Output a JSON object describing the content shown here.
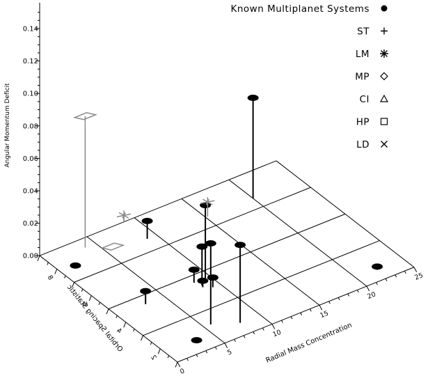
{
  "chart_data": {
    "type": "scatter",
    "subtype": "3d-stem",
    "xlabel": "Radial Mass Concentration",
    "ylabel": "Orbital Spacing Statistic",
    "zlabel": "Angular Momentum Deficit",
    "xlim": [
      0,
      25
    ],
    "ylim": [
      1,
      9
    ],
    "zlim": [
      0,
      0.15
    ],
    "x_ticks": [
      "0",
      "5",
      "10",
      "15",
      "20",
      "25"
    ],
    "y_ticks": [
      "2",
      "4",
      "6",
      "8"
    ],
    "z_ticks": [
      "0.00",
      "0.02",
      "0.04",
      "0.06",
      "0.08",
      "0.10",
      "0.12",
      "0.14"
    ],
    "legend_position": "top-right",
    "legend": [
      {
        "label": "Known Multiplanet Systems",
        "symbol": "filled-ellipse"
      },
      {
        "label": "ST",
        "symbol": "plus"
      },
      {
        "label": "LM",
        "symbol": "asterisk"
      },
      {
        "label": "MP",
        "symbol": "diamond"
      },
      {
        "label": "CI",
        "symbol": "triangle"
      },
      {
        "label": "HP",
        "symbol": "square"
      },
      {
        "label": "LD",
        "symbol": "x"
      }
    ],
    "series": [
      {
        "name": "Known Multiplanet Systems",
        "color": "#000000",
        "points": [
          {
            "x": 3.3,
            "y": 1.7,
            "z": 0.0
          },
          {
            "x": 1.6,
            "y": 7.8,
            "z": 0.0
          },
          {
            "x": 3.0,
            "y": 4.5,
            "z": 0.008
          },
          {
            "x": 8.3,
            "y": 4.6,
            "z": 0.008
          },
          {
            "x": 8.5,
            "y": 4.2,
            "z": 0.004
          },
          {
            "x": 9.2,
            "y": 4.0,
            "z": 0.006
          },
          {
            "x": 22.2,
            "y": 1.6,
            "z": 0.002
          },
          {
            "x": 5.7,
            "y": 2.2,
            "z": 0.05
          },
          {
            "x": 7.9,
            "y": 1.7,
            "z": 0.048
          },
          {
            "x": 9.5,
            "y": 4.6,
            "z": 0.045
          },
          {
            "x": 9.0,
            "y": 7.7,
            "z": 0.011
          },
          {
            "x": 8.6,
            "y": 4.3,
            "z": 0.024
          },
          {
            "x": 20.0,
            "y": 7.6,
            "z": 0.062
          }
        ]
      },
      {
        "name": "LM",
        "color": "#888888",
        "points": [
          {
            "x": 8.9,
            "y": 9.0,
            "z": 0.004
          },
          {
            "x": 15.2,
            "y": 7.6,
            "z": 0.009
          }
        ]
      },
      {
        "name": "MP",
        "color": "#888888",
        "points": [
          {
            "x": 3.9,
            "y": 8.5,
            "z": 0.081
          },
          {
            "x": 5.9,
            "y": 8.0,
            "z": 0.0
          }
        ]
      }
    ]
  }
}
